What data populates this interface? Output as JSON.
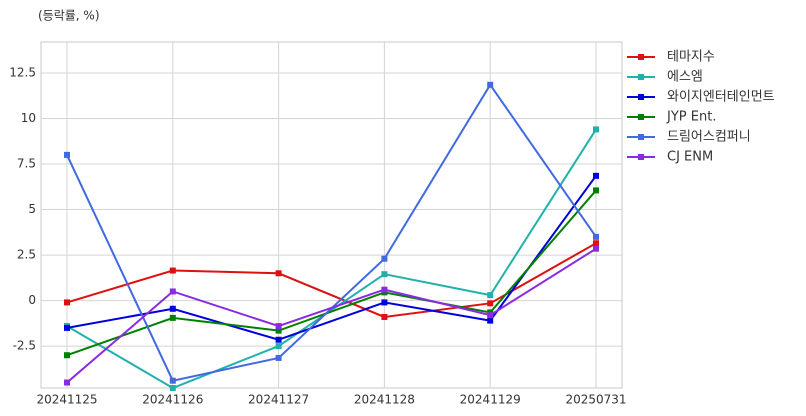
{
  "chart_data": {
    "type": "line",
    "ylabel": "(등락률, %)",
    "categories": [
      "20241125",
      "20241126",
      "20241127",
      "20241128",
      "20241129",
      "20250731"
    ],
    "series": [
      {
        "name": "테마지수",
        "color": "#dd1111",
        "values": [
          -0.1,
          1.65,
          1.5,
          -0.9,
          -0.15,
          3.15
        ]
      },
      {
        "name": "에스엠",
        "color": "#20b2aa",
        "values": [
          -1.4,
          -4.8,
          -2.5,
          1.45,
          0.3,
          9.4
        ]
      },
      {
        "name": "와이지엔터테인먼트",
        "color": "#0000dd",
        "values": [
          -1.5,
          -0.45,
          -2.15,
          -0.1,
          -1.1,
          6.85
        ]
      },
      {
        "name": "JYP Ent.",
        "color": "#008000",
        "values": [
          -3.0,
          -0.95,
          -1.65,
          0.45,
          -0.65,
          6.05
        ]
      },
      {
        "name": "드림어스컴퍼니",
        "color": "#4169e1",
        "values": [
          8.0,
          -4.4,
          -3.15,
          2.3,
          11.85,
          3.5
        ]
      },
      {
        "name": "CJ ENM",
        "color": "#8a2be2",
        "values": [
          -4.5,
          0.5,
          -1.4,
          0.6,
          -0.8,
          2.85
        ]
      }
    ],
    "ylim": [
      -4.8,
      14.2
    ],
    "yticks": [
      -2.5,
      0.0,
      2.5,
      5.0,
      7.5,
      10.0,
      12.5
    ],
    "grid": true
  }
}
